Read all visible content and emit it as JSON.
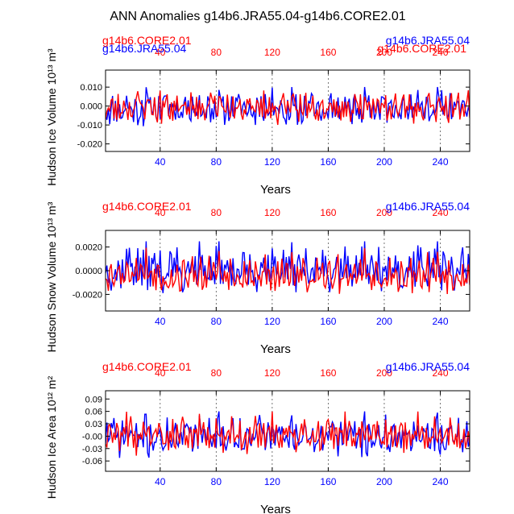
{
  "figure": {
    "title": "ANN Anomalies g14b6.JRA55.04-g14b6.CORE2.01",
    "colors": {
      "jra": "#0000ff",
      "core": "#ff0000",
      "axis": "#000000"
    }
  },
  "chart_data": [
    {
      "type": "line",
      "ylabel": "Hudson Ice Volume 10¹³ m³",
      "xlabel": "Years",
      "xlim": [
        1,
        261
      ],
      "ylim": [
        -0.024,
        0.019
      ],
      "yticks": [
        0.01,
        0.0,
        -0.01,
        -0.02
      ],
      "ytick_labels": [
        "0.010",
        "0.000",
        "-0.010",
        "-0.020"
      ],
      "bottom_ticks": [
        40,
        80,
        120,
        160,
        200,
        240
      ],
      "bottom_tick_labels": [
        "40",
        "80",
        "120",
        "160",
        "200",
        "240"
      ],
      "top_ticks": [
        40,
        80,
        120,
        160,
        200,
        240
      ],
      "top_tick_labels": [
        "40",
        "80",
        "120",
        "160",
        "200",
        "240"
      ],
      "legend": {
        "left": "g14b6.JRA55.04",
        "right": "g14b6.CORE2.01",
        "left_top": "g14b6.CORE2.01",
        "right_top": "g14b6.JRA55.04"
      },
      "series": [
        {
          "name": "g14b6.JRA55.04",
          "color": "#0000ff",
          "amplitude": 0.0092,
          "offset": -0.001,
          "seed": 11
        },
        {
          "name": "g14b6.CORE2.01",
          "color": "#ff0000",
          "amplitude": 0.0088,
          "offset": -0.0005,
          "seed": 23
        }
      ]
    },
    {
      "type": "line",
      "ylabel": "Hudson Snow Volume 10¹³ m³",
      "xlabel": "Years",
      "xlim": [
        1,
        261
      ],
      "ylim": [
        -0.0034,
        0.0034
      ],
      "yticks": [
        0.002,
        0.0,
        -0.002
      ],
      "ytick_labels": [
        "0.0020",
        "0.0000",
        "-0.0020"
      ],
      "bottom_ticks": [
        40,
        80,
        120,
        160,
        200,
        240
      ],
      "bottom_tick_labels": [
        "40",
        "80",
        "120",
        "160",
        "200",
        "240"
      ],
      "top_ticks": [
        40,
        80,
        120,
        160,
        200,
        240
      ],
      "top_tick_labels": [
        "40",
        "80",
        "120",
        "160",
        "200",
        "240"
      ],
      "legend": {
        "left": "g14b6.CORE2.01",
        "right": "g14b6.JRA55.04"
      },
      "series": [
        {
          "name": "g14b6.JRA55.04",
          "color": "#0000ff",
          "amplitude": 0.0019,
          "offset": 0.0002,
          "seed": 37
        },
        {
          "name": "g14b6.CORE2.01",
          "color": "#ff0000",
          "amplitude": 0.0017,
          "offset": -0.0001,
          "seed": 53
        }
      ]
    },
    {
      "type": "line",
      "ylabel": "Hudson Ice Area 10¹² m²",
      "xlabel": "Years",
      "xlim": [
        1,
        261
      ],
      "ylim": [
        -0.085,
        0.11
      ],
      "yticks": [
        0.09,
        0.06,
        0.03,
        0.0,
        -0.03,
        -0.06
      ],
      "ytick_labels": [
        "0.09",
        "0.06",
        "0.03",
        "-0.00",
        "-0.03",
        "-0.06"
      ],
      "bottom_ticks": [
        40,
        80,
        120,
        160,
        200,
        240
      ],
      "bottom_tick_labels": [
        "40",
        "80",
        "120",
        "160",
        "200",
        "240"
      ],
      "top_ticks": [
        40,
        80,
        120,
        160,
        200,
        240
      ],
      "top_tick_labels": [
        "40",
        "80",
        "120",
        "160",
        "200",
        "240"
      ],
      "legend": {
        "left": "g14b6.CORE2.01",
        "right": "g14b6.JRA55.04"
      },
      "series": [
        {
          "name": "g14b6.JRA55.04",
          "color": "#0000ff",
          "amplitude": 0.05,
          "offset": 0.0,
          "seed": 71
        },
        {
          "name": "g14b6.CORE2.01",
          "color": "#ff0000",
          "amplitude": 0.048,
          "offset": 0.002,
          "seed": 89
        }
      ]
    }
  ]
}
